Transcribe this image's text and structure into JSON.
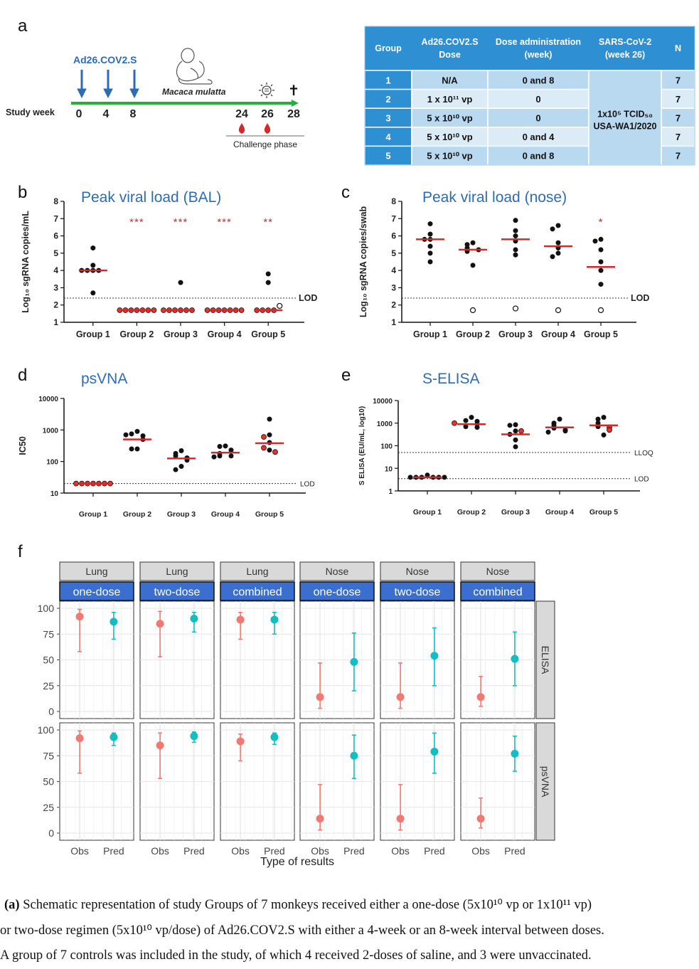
{
  "panels": {
    "a": {
      "letter": "a",
      "vaccine_label": "Ad26.COV2.S",
      "animal_label": "Macaca mulatta",
      "axis_label": "Study week",
      "weeks": [
        "0",
        "4",
        "8",
        "24",
        "26",
        "28"
      ],
      "challenge_label": "Challenge phase",
      "dagger": "✝",
      "colors": {
        "timeline": "#27ae3a",
        "arrow": "#2a6db5",
        "drop": "#d9262b"
      },
      "table": {
        "headers": [
          "Group",
          "Ad26.COV2.S Dose",
          "Dose administration (week)",
          "SARS-CoV-2 (week 26)",
          "N"
        ],
        "header_lines": [
          [
            "Group"
          ],
          [
            "Ad26.COV2.S",
            "Dose"
          ],
          [
            "Dose administration",
            "(week)"
          ],
          [
            "SARS-CoV-2",
            "(week 26)"
          ],
          [
            "N"
          ]
        ],
        "rows": [
          {
            "group": "1",
            "dose": "N/A",
            "admin": "0 and 8",
            "n": "7"
          },
          {
            "group": "2",
            "dose": "1 x 10¹¹ vp",
            "admin": "0",
            "n": "7"
          },
          {
            "group": "3",
            "dose": "5 x 10¹⁰ vp",
            "admin": "0",
            "n": "7"
          },
          {
            "group": "4",
            "dose": "5 x 10¹⁰ vp",
            "admin": "0 and 4",
            "n": "7"
          },
          {
            "group": "5",
            "dose": "5 x 10¹⁰ vp",
            "admin": "0 and 8",
            "n": "7"
          }
        ],
        "challenge_line1": "1x10⁵ TCID₅₀",
        "challenge_line2": "USA-WA1/2020"
      }
    },
    "b": {
      "letter": "b"
    },
    "c": {
      "letter": "c"
    },
    "d": {
      "letter": "d"
    },
    "e": {
      "letter": "e"
    },
    "f": {
      "letter": "f"
    }
  },
  "chart_data": [
    {
      "id": "b",
      "type": "scatter",
      "title": "Peak viral load (BAL)",
      "ylabel": "Log₁₀ sgRNA copies/mL",
      "ylim": [
        1,
        8
      ],
      "yticks": [
        "1",
        "2",
        "3",
        "4",
        "5",
        "6",
        "7",
        "8"
      ],
      "categories": [
        "Group 1",
        "Group 2",
        "Group 3",
        "Group 4",
        "Group 5"
      ],
      "lod": 2.4,
      "lod_label": "LOD",
      "significance": [
        "",
        "***",
        "***",
        "***",
        "**"
      ],
      "medians": [
        4.0,
        1.7,
        1.7,
        1.7,
        1.7
      ],
      "groups": [
        {
          "filled": [
            5.3,
            4.3,
            4.0,
            4.0,
            4.0,
            4.0,
            2.7
          ],
          "open": [],
          "red": []
        },
        {
          "filled": [],
          "open": [],
          "red": [
            1.7,
            1.7,
            1.7,
            1.7,
            1.7,
            1.7,
            1.7
          ]
        },
        {
          "filled": [
            3.3
          ],
          "open": [],
          "red": [
            1.7,
            1.7,
            1.7,
            1.7,
            1.7,
            1.7
          ]
        },
        {
          "filled": [],
          "open": [],
          "red": [
            1.7,
            1.7,
            1.7,
            1.7,
            1.7,
            1.7,
            1.7
          ]
        },
        {
          "filled": [
            3.8,
            3.3
          ],
          "open": [
            1.95
          ],
          "red": [
            1.7,
            1.7,
            1.7,
            1.7
          ]
        }
      ]
    },
    {
      "id": "c",
      "type": "scatter",
      "title": "Peak viral load (nose)",
      "ylabel": "Log₁₀ sgRNA copies/swab",
      "ylim": [
        1,
        8
      ],
      "yticks": [
        "1",
        "2",
        "3",
        "4",
        "5",
        "6",
        "7",
        "8"
      ],
      "categories": [
        "Group 1",
        "Group 2",
        "Group 3",
        "Group 4",
        "Group 5"
      ],
      "lod": 2.4,
      "lod_label": "LOD",
      "significance": [
        "",
        "",
        "",
        "",
        "*"
      ],
      "medians": [
        5.8,
        5.2,
        5.8,
        5.4,
        4.2
      ],
      "groups": [
        {
          "filled": [
            6.7,
            6.1,
            5.8,
            5.8,
            5.4,
            5.0,
            4.5
          ],
          "open": [],
          "red": []
        },
        {
          "filled": [
            5.6,
            5.5,
            5.3,
            5.1,
            5.2,
            4.3
          ],
          "open": [
            1.7
          ],
          "red": []
        },
        {
          "filled": [
            6.9,
            6.3,
            6.0,
            5.7,
            5.2,
            4.9
          ],
          "open": [
            1.8
          ],
          "red": []
        },
        {
          "filled": [
            6.6,
            6.4,
            5.6,
            5.3,
            5.0,
            4.8
          ],
          "open": [
            1.7
          ],
          "red": []
        },
        {
          "filled": [
            5.8,
            5.7,
            5.2,
            4.5,
            4.0,
            3.2
          ],
          "open": [
            1.7
          ],
          "red": []
        }
      ]
    },
    {
      "id": "d",
      "type": "scatter",
      "title": "psVNA",
      "ylabel": "IC50",
      "log_scale": true,
      "ylim": [
        10,
        10000
      ],
      "yticks": [
        "10",
        "100",
        "1000",
        "10000"
      ],
      "categories": [
        "Group 1",
        "Group 2",
        "Group 3",
        "Group 4",
        "Group 5"
      ],
      "lod": 20,
      "lod_label": "LOD",
      "medians": [
        20,
        500,
        125,
        190,
        380
      ],
      "groups": [
        {
          "filled": [],
          "open": [],
          "red": [
            20,
            20,
            20,
            20,
            20,
            20,
            20
          ]
        },
        {
          "filled": [
            900,
            750,
            650,
            700,
            500,
            250,
            250
          ],
          "open": [],
          "red": []
        },
        {
          "filled": [
            220,
            180,
            150,
            130,
            110,
            70,
            55
          ],
          "open": [],
          "red": []
        },
        {
          "filled": [
            310,
            300,
            230,
            180,
            150,
            150,
            140
          ],
          "open": [],
          "red": []
        },
        {
          "filled": [
            2200,
            700,
            400,
            230
          ],
          "open": [],
          "red": [
            600,
            270,
            200
          ]
        }
      ]
    },
    {
      "id": "e",
      "type": "scatter",
      "title": "S-ELISA",
      "ylabel": "S ELISA (EU/mL, log10)",
      "log_scale": true,
      "ylim": [
        1,
        10000
      ],
      "yticks": [
        "1",
        "10",
        "100",
        "1000",
        "10000"
      ],
      "categories": [
        "Group 1",
        "Group 2",
        "Group 3",
        "Group 4",
        "Group 5"
      ],
      "lod": 3.5,
      "lod_label": "LOD",
      "lloq": 50,
      "lloq_label": "LLOQ",
      "medians": [
        4,
        900,
        320,
        650,
        800
      ],
      "groups": [
        {
          "filled": [
            5,
            4,
            4,
            4,
            4,
            4,
            4
          ],
          "open": [],
          "red": []
        },
        {
          "filled": [
            1800,
            1300,
            1200,
            900,
            700,
            650
          ],
          "open": [],
          "red": [
            1000
          ]
        },
        {
          "filled": [
            850,
            800,
            450,
            320,
            180,
            90
          ],
          "open": [],
          "red": [
            450
          ]
        },
        {
          "filled": [
            1500,
            1000,
            800,
            600,
            500,
            450,
            400
          ],
          "open": [],
          "red": []
        },
        {
          "filled": [
            1800,
            1500,
            1000,
            700,
            300
          ],
          "open": [],
          "red": [
            650,
            500
          ]
        }
      ]
    },
    {
      "id": "f",
      "type": "scatter",
      "xlabel": "Type of results",
      "categories": [
        "Obs",
        "Pred"
      ],
      "ylim": [
        0,
        100
      ],
      "yticks": [
        "0",
        "25",
        "50",
        "75",
        "100"
      ],
      "facet_cols": [
        {
          "top": "Lung",
          "sub": "one-dose"
        },
        {
          "top": "Lung",
          "sub": "two-dose"
        },
        {
          "top": "Lung",
          "sub": "combined"
        },
        {
          "top": "Nose",
          "sub": "one-dose"
        },
        {
          "top": "Nose",
          "sub": "two-dose"
        },
        {
          "top": "Nose",
          "sub": "combined"
        }
      ],
      "facet_rows": [
        "ELISA",
        "psVNA"
      ],
      "colors": {
        "Obs": "#f07a72",
        "Pred": "#12bec1"
      },
      "cells": [
        [
          {
            "obs": [
              92,
              58,
              99
            ],
            "pred": [
              87,
              70,
              96
            ]
          },
          {
            "obs": [
              85,
              53,
              97
            ],
            "pred": [
              90,
              77,
              96
            ]
          },
          {
            "obs": [
              89,
              70,
              96
            ],
            "pred": [
              89,
              75,
              96
            ]
          },
          {
            "obs": [
              14,
              3,
              47
            ],
            "pred": [
              48,
              20,
              76
            ]
          },
          {
            "obs": [
              14,
              3,
              47
            ],
            "pred": [
              54,
              25,
              81
            ]
          },
          {
            "obs": [
              14,
              5,
              34
            ],
            "pred": [
              51,
              25,
              77
            ]
          }
        ],
        [
          {
            "obs": [
              92,
              58,
              99
            ],
            "pred": [
              93,
              85,
              97
            ]
          },
          {
            "obs": [
              85,
              53,
              97
            ],
            "pred": [
              94,
              88,
              98
            ]
          },
          {
            "obs": [
              89,
              70,
              96
            ],
            "pred": [
              93,
              86,
              97
            ]
          },
          {
            "obs": [
              14,
              3,
              47
            ],
            "pred": [
              75,
              53,
              95
            ]
          },
          {
            "obs": [
              14,
              3,
              47
            ],
            "pred": [
              79,
              58,
              97
            ]
          },
          {
            "obs": [
              14,
              5,
              34
            ],
            "pred": [
              77,
              60,
              94
            ]
          }
        ]
      ]
    }
  ],
  "caption": {
    "label": "(a)",
    "line1": " Schematic representation of study Groups of 7 monkeys received either a one-dose (5x10¹⁰ vp or 1x10¹¹ vp)",
    "line2": "or two-dose regimen (5x10¹⁰ vp/dose) of Ad26.COV2.S with either a 4-week or an 8-week interval between doses.",
    "line3": "A group of 7 controls was included in the study, of which 4 received 2-doses of saline, and 3 were unvaccinated."
  }
}
